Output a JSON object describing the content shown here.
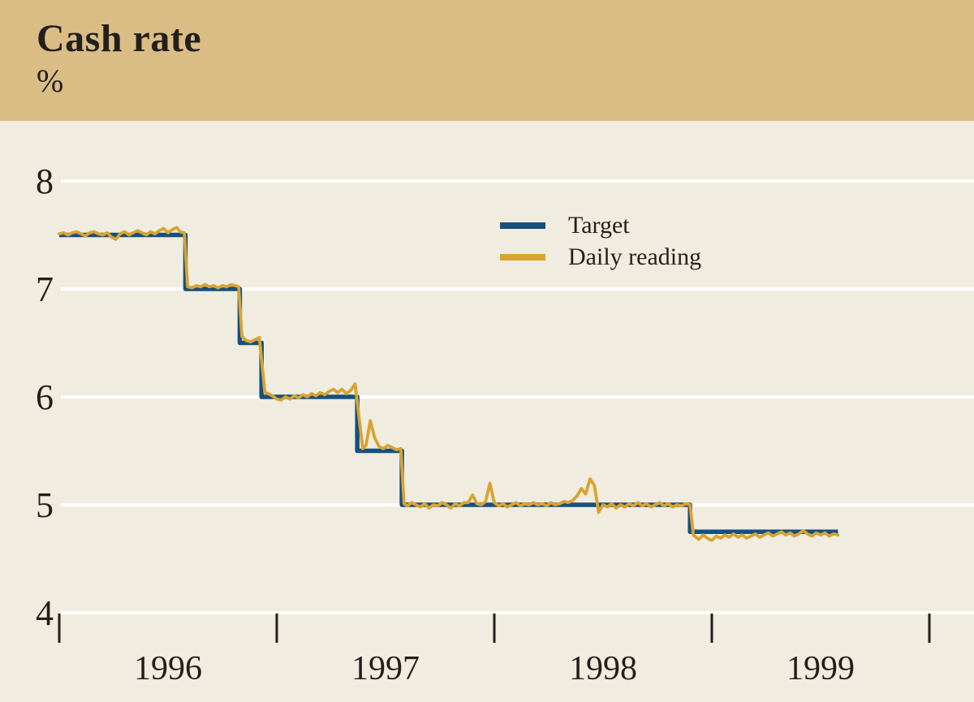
{
  "header": {
    "title": "Cash rate",
    "unit": "%"
  },
  "legend": {
    "items": [
      {
        "label": "Target",
        "color": "#15507e"
      },
      {
        "label": "Daily reading",
        "color": "#d9a331"
      }
    ]
  },
  "colors": {
    "header_bg": "#d9bd85",
    "page_bg": "#f0ede0",
    "grid": "#ffffff",
    "text": "#241f1b",
    "tick": "#241f1b",
    "target": "#15507e",
    "daily": "#d9a331"
  },
  "chart_data": {
    "type": "line",
    "title": "Cash rate",
    "ylabel": "%",
    "xlabel": "",
    "ylim": [
      4,
      8
    ],
    "x_range": [
      1996.0,
      1999.58
    ],
    "grid": "horizontal-white",
    "legend_position": "upper-middle",
    "y_axis": {
      "ticks": [
        8,
        7,
        6,
        5,
        4
      ]
    },
    "x_axis": {
      "tick_positions": [
        1996,
        1997,
        1998,
        1999,
        2000
      ],
      "labels": [
        {
          "text": "1996",
          "position": 1996.5
        },
        {
          "text": "1997",
          "position": 1997.5
        },
        {
          "text": "1998",
          "position": 1998.5
        },
        {
          "text": "1999",
          "position": 1999.5
        }
      ]
    },
    "series": [
      {
        "name": "Target",
        "style": "step",
        "steps": [
          {
            "start": 1996.0,
            "end": 1996.58,
            "value": 7.5
          },
          {
            "start": 1996.58,
            "end": 1996.83,
            "value": 7.0
          },
          {
            "start": 1996.83,
            "end": 1996.93,
            "value": 6.5
          },
          {
            "start": 1996.93,
            "end": 1997.37,
            "value": 6.0
          },
          {
            "start": 1997.37,
            "end": 1997.575,
            "value": 5.5
          },
          {
            "start": 1997.575,
            "end": 1998.9,
            "value": 5.0
          },
          {
            "start": 1998.9,
            "end": 1999.58,
            "value": 4.75
          }
        ]
      },
      {
        "name": "Daily reading",
        "style": "line",
        "points": [
          [
            1996.0,
            7.51
          ],
          [
            1996.02,
            7.52
          ],
          [
            1996.04,
            7.5
          ],
          [
            1996.06,
            7.52
          ],
          [
            1996.08,
            7.53
          ],
          [
            1996.1,
            7.51
          ],
          [
            1996.12,
            7.49
          ],
          [
            1996.14,
            7.52
          ],
          [
            1996.16,
            7.53
          ],
          [
            1996.18,
            7.51
          ],
          [
            1996.2,
            7.5
          ],
          [
            1996.22,
            7.52
          ],
          [
            1996.24,
            7.48
          ],
          [
            1996.26,
            7.46
          ],
          [
            1996.28,
            7.51
          ],
          [
            1996.3,
            7.53
          ],
          [
            1996.32,
            7.5
          ],
          [
            1996.34,
            7.52
          ],
          [
            1996.36,
            7.54
          ],
          [
            1996.38,
            7.52
          ],
          [
            1996.4,
            7.5
          ],
          [
            1996.42,
            7.53
          ],
          [
            1996.44,
            7.51
          ],
          [
            1996.46,
            7.54
          ],
          [
            1996.48,
            7.56
          ],
          [
            1996.5,
            7.52
          ],
          [
            1996.52,
            7.55
          ],
          [
            1996.54,
            7.57
          ],
          [
            1996.555,
            7.53
          ],
          [
            1996.575,
            7.52
          ],
          [
            1996.59,
            7.02
          ],
          [
            1996.61,
            7.01
          ],
          [
            1996.63,
            7.03
          ],
          [
            1996.65,
            7.02
          ],
          [
            1996.67,
            7.04
          ],
          [
            1996.69,
            7.02
          ],
          [
            1996.71,
            7.03
          ],
          [
            1996.73,
            7.01
          ],
          [
            1996.75,
            7.03
          ],
          [
            1996.77,
            7.02
          ],
          [
            1996.79,
            7.04
          ],
          [
            1996.81,
            7.03
          ],
          [
            1996.825,
            7.02
          ],
          [
            1996.84,
            6.56
          ],
          [
            1996.86,
            6.52
          ],
          [
            1996.88,
            6.51
          ],
          [
            1996.9,
            6.53
          ],
          [
            1996.92,
            6.55
          ],
          [
            1996.945,
            6.04
          ],
          [
            1996.96,
            6.03
          ],
          [
            1996.98,
            6.01
          ],
          [
            1997.0,
            5.98
          ],
          [
            1997.02,
            5.97
          ],
          [
            1997.04,
            6.0
          ],
          [
            1997.06,
            5.98
          ],
          [
            1997.08,
            6.01
          ],
          [
            1997.1,
            5.99
          ],
          [
            1997.12,
            6.02
          ],
          [
            1997.14,
            6.0
          ],
          [
            1997.16,
            6.03
          ],
          [
            1997.18,
            6.01
          ],
          [
            1997.2,
            6.04
          ],
          [
            1997.22,
            6.02
          ],
          [
            1997.24,
            6.05
          ],
          [
            1997.26,
            6.07
          ],
          [
            1997.28,
            6.04
          ],
          [
            1997.3,
            6.07
          ],
          [
            1997.32,
            6.03
          ],
          [
            1997.34,
            6.06
          ],
          [
            1997.36,
            6.12
          ],
          [
            1997.395,
            5.52
          ],
          [
            1997.41,
            5.55
          ],
          [
            1997.43,
            5.78
          ],
          [
            1997.45,
            5.62
          ],
          [
            1997.47,
            5.54
          ],
          [
            1997.49,
            5.52
          ],
          [
            1997.51,
            5.55
          ],
          [
            1997.53,
            5.53
          ],
          [
            1997.55,
            5.51
          ],
          [
            1997.57,
            5.52
          ],
          [
            1997.585,
            5.01
          ],
          [
            1997.6,
            4.99
          ],
          [
            1997.62,
            5.02
          ],
          [
            1997.64,
            5.0
          ],
          [
            1997.66,
            4.98
          ],
          [
            1997.68,
            5.01
          ],
          [
            1997.7,
            4.97
          ],
          [
            1997.72,
            5.0
          ],
          [
            1997.74,
            4.99
          ],
          [
            1997.76,
            5.02
          ],
          [
            1997.78,
            5.0
          ],
          [
            1997.8,
            4.97
          ],
          [
            1997.82,
            5.01
          ],
          [
            1997.84,
            4.99
          ],
          [
            1997.86,
            5.02
          ],
          [
            1997.88,
            5.02
          ],
          [
            1997.9,
            5.09
          ],
          [
            1997.92,
            5.01
          ],
          [
            1997.94,
            5.0
          ],
          [
            1997.96,
            5.03
          ],
          [
            1997.98,
            5.2
          ],
          [
            1998.0,
            5.02
          ],
          [
            1998.02,
            4.99
          ],
          [
            1998.04,
            5.01
          ],
          [
            1998.06,
            4.98
          ],
          [
            1998.08,
            5.0
          ],
          [
            1998.1,
            5.02
          ],
          [
            1998.12,
            4.99
          ],
          [
            1998.14,
            5.01
          ],
          [
            1998.16,
            5.0
          ],
          [
            1998.18,
            5.02
          ],
          [
            1998.2,
            5.0
          ],
          [
            1998.22,
            5.01
          ],
          [
            1998.24,
            4.99
          ],
          [
            1998.26,
            5.02
          ],
          [
            1998.28,
            5.0
          ],
          [
            1998.3,
            5.01
          ],
          [
            1998.32,
            5.03
          ],
          [
            1998.34,
            5.02
          ],
          [
            1998.36,
            5.04
          ],
          [
            1998.38,
            5.08
          ],
          [
            1998.4,
            5.15
          ],
          [
            1998.42,
            5.1
          ],
          [
            1998.44,
            5.24
          ],
          [
            1998.46,
            5.18
          ],
          [
            1998.48,
            4.93
          ],
          [
            1998.5,
            5.0
          ],
          [
            1998.52,
            4.98
          ],
          [
            1998.54,
            5.01
          ],
          [
            1998.56,
            4.97
          ],
          [
            1998.58,
            5.0
          ],
          [
            1998.6,
            4.98
          ],
          [
            1998.62,
            5.01
          ],
          [
            1998.64,
            4.99
          ],
          [
            1998.66,
            5.02
          ],
          [
            1998.68,
            4.99
          ],
          [
            1998.7,
            5.01
          ],
          [
            1998.72,
            4.98
          ],
          [
            1998.74,
            5.0
          ],
          [
            1998.76,
            5.02
          ],
          [
            1998.78,
            4.99
          ],
          [
            1998.8,
            5.01
          ],
          [
            1998.82,
            4.98
          ],
          [
            1998.84,
            5.0
          ],
          [
            1998.86,
            4.99
          ],
          [
            1998.88,
            5.01
          ],
          [
            1998.9,
            5.0
          ],
          [
            1998.915,
            4.72
          ],
          [
            1998.94,
            4.68
          ],
          [
            1998.96,
            4.72
          ],
          [
            1998.98,
            4.69
          ],
          [
            1999.0,
            4.67
          ],
          [
            1999.02,
            4.71
          ],
          [
            1999.04,
            4.69
          ],
          [
            1999.06,
            4.72
          ],
          [
            1999.08,
            4.7
          ],
          [
            1999.1,
            4.73
          ],
          [
            1999.12,
            4.7
          ],
          [
            1999.14,
            4.72
          ],
          [
            1999.16,
            4.69
          ],
          [
            1999.18,
            4.71
          ],
          [
            1999.2,
            4.73
          ],
          [
            1999.22,
            4.7
          ],
          [
            1999.24,
            4.72
          ],
          [
            1999.26,
            4.74
          ],
          [
            1999.28,
            4.71
          ],
          [
            1999.3,
            4.73
          ],
          [
            1999.32,
            4.75
          ],
          [
            1999.34,
            4.72
          ],
          [
            1999.36,
            4.74
          ],
          [
            1999.38,
            4.71
          ],
          [
            1999.4,
            4.73
          ],
          [
            1999.42,
            4.76
          ],
          [
            1999.44,
            4.73
          ],
          [
            1999.46,
            4.71
          ],
          [
            1999.48,
            4.74
          ],
          [
            1999.5,
            4.72
          ],
          [
            1999.52,
            4.74
          ],
          [
            1999.54,
            4.71
          ],
          [
            1999.56,
            4.73
          ],
          [
            1999.58,
            4.72
          ]
        ]
      }
    ]
  }
}
